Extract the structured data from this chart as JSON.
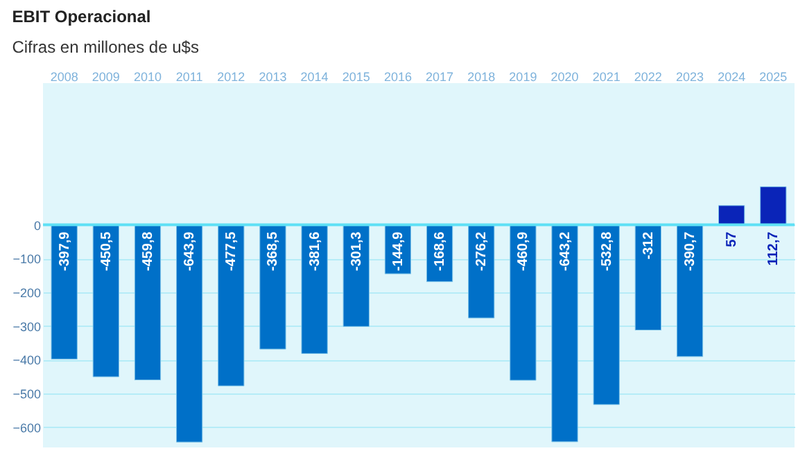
{
  "chart_data": {
    "type": "bar",
    "title": "EBIT Operacional",
    "subtitle": "Cifras en millones de u$s",
    "categories": [
      "2008",
      "2009",
      "2010",
      "2011",
      "2012",
      "2013",
      "2014",
      "2015",
      "2016",
      "2017",
      "2018",
      "2019",
      "2020",
      "2021",
      "2022",
      "2023",
      "2024",
      "2025"
    ],
    "values": [
      -397.9,
      -450.5,
      -459.8,
      -643.9,
      -477.5,
      -368.5,
      -381.6,
      -301.3,
      -144.9,
      -168.6,
      -276.2,
      -460.9,
      -643.2,
      -532.8,
      -312,
      -390.7,
      57,
      112.7
    ],
    "colors": [
      "#0070c8",
      "#0070c8",
      "#0070c8",
      "#0070c8",
      "#0070c8",
      "#0070c8",
      "#0070c8",
      "#0070c8",
      "#0070c8",
      "#0070c8",
      "#0070c8",
      "#0070c8",
      "#0070c8",
      "#0070c8",
      "#0070c8",
      "#0070c8",
      "#0a24b8",
      "#0a24b8"
    ],
    "value_labels": [
      "-397,9",
      "-450,5",
      "-459,8",
      "-643,9",
      "-477,5",
      "-368,5",
      "-381,6",
      "-301,3",
      "-144,9",
      "-168,6",
      "-276,2",
      "-460,9",
      "-643,2",
      "-532,8",
      "-312",
      "-390,7",
      "57",
      "112,7"
    ],
    "ref_lines": [
      {
        "axis": "y",
        "value": 0,
        "color": "#5ee0f5"
      }
    ],
    "ylim": [
      -660,
      420
    ],
    "yticks": [
      0,
      -100,
      -200,
      -300,
      -400,
      -500,
      -600
    ],
    "grid": "y"
  }
}
